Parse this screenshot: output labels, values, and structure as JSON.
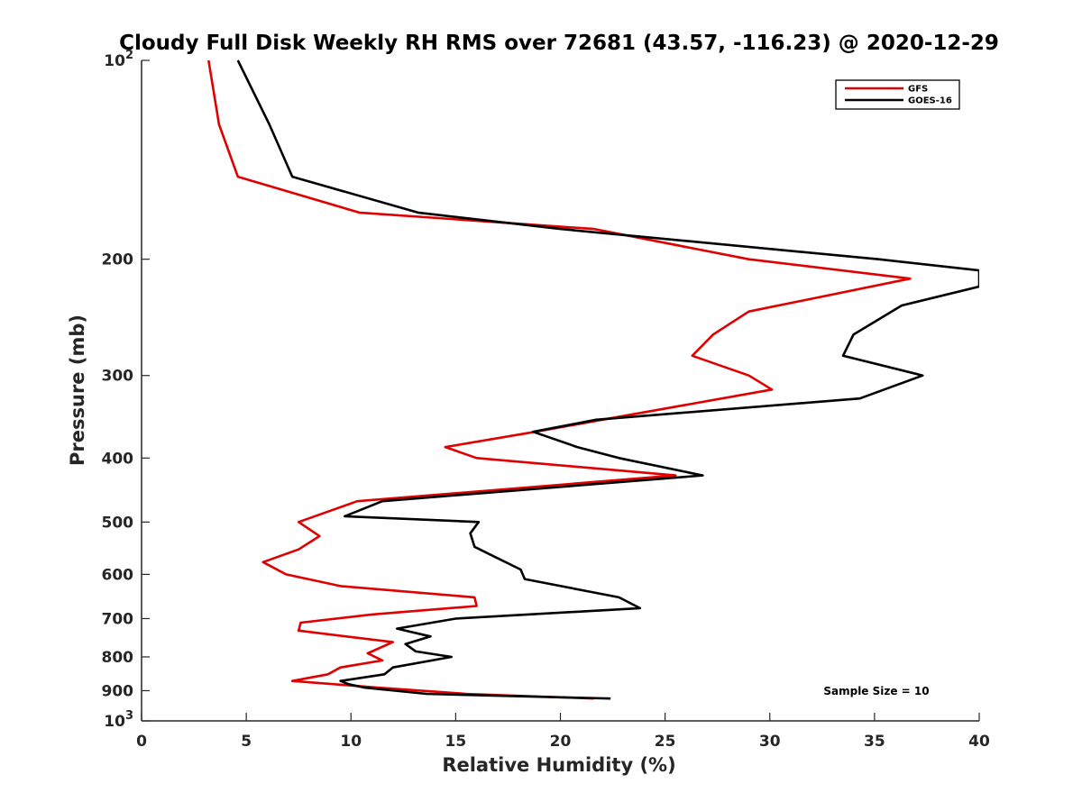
{
  "chart_data": {
    "type": "line",
    "title": "Cloudy Full Disk Weekly RH RMS over 72681 (43.57, -116.23) @ 2020-12-29",
    "xlabel": "Relative Humidity (%)",
    "ylabel": "Pressure (mb)",
    "xlim": [
      0,
      40
    ],
    "ylim": [
      100,
      1000
    ],
    "y_scale": "log",
    "y_reversed": true,
    "x_ticks": [
      "0",
      "5",
      "10",
      "15",
      "20",
      "25",
      "30",
      "35",
      "40"
    ],
    "y_ticks": [
      {
        "value": 100,
        "base": "10",
        "exp": "2"
      },
      {
        "value": 200,
        "label": "200"
      },
      {
        "value": 300,
        "label": "300"
      },
      {
        "value": 400,
        "label": "400"
      },
      {
        "value": 500,
        "label": "500"
      },
      {
        "value": 600,
        "label": "600"
      },
      {
        "value": 700,
        "label": "700"
      },
      {
        "value": 800,
        "label": "800"
      },
      {
        "value": 900,
        "label": "900"
      },
      {
        "value": 1000,
        "base": "10",
        "exp": "3"
      }
    ],
    "legend_position": "top-right",
    "grid": false,
    "series": [
      {
        "name": "GFS",
        "color": "#e00000",
        "points": [
          [
            3.2,
            100
          ],
          [
            3.7,
            125
          ],
          [
            4.6,
            150
          ],
          [
            10.4,
            170
          ],
          [
            21.6,
            180
          ],
          [
            29.0,
            200
          ],
          [
            36.7,
            214
          ],
          [
            29.0,
            240
          ],
          [
            27.3,
            260
          ],
          [
            26.3,
            280
          ],
          [
            29.0,
            300
          ],
          [
            30.1,
            315
          ],
          [
            22.0,
            350
          ],
          [
            18.8,
            365
          ],
          [
            14.5,
            385
          ],
          [
            16.0,
            400
          ],
          [
            25.5,
            425
          ],
          [
            10.3,
            465
          ],
          [
            7.5,
            500
          ],
          [
            8.5,
            525
          ],
          [
            7.5,
            550
          ],
          [
            5.8,
            575
          ],
          [
            6.9,
            600
          ],
          [
            9.5,
            625
          ],
          [
            15.9,
            650
          ],
          [
            16.0,
            670
          ],
          [
            11.0,
            690
          ],
          [
            7.6,
            710
          ],
          [
            7.5,
            730
          ],
          [
            12.0,
            760
          ],
          [
            10.8,
            790
          ],
          [
            11.5,
            810
          ],
          [
            9.5,
            830
          ],
          [
            8.9,
            850
          ],
          [
            7.2,
            870
          ],
          [
            11.2,
            890
          ],
          [
            15.5,
            910
          ],
          [
            21.6,
            925
          ]
        ]
      },
      {
        "name": "GOES-16",
        "color": "#000000",
        "points": [
          [
            4.6,
            100
          ],
          [
            6.1,
            125
          ],
          [
            7.2,
            150
          ],
          [
            13.2,
            170
          ],
          [
            20.0,
            180
          ],
          [
            35.2,
            200
          ],
          [
            40.0,
            208
          ],
          [
            40.0,
            220
          ],
          [
            36.3,
            235
          ],
          [
            34.0,
            260
          ],
          [
            33.5,
            280
          ],
          [
            37.3,
            300
          ],
          [
            34.3,
            325
          ],
          [
            21.7,
            350
          ],
          [
            18.7,
            365
          ],
          [
            20.8,
            385
          ],
          [
            22.8,
            400
          ],
          [
            26.8,
            425
          ],
          [
            11.5,
            465
          ],
          [
            9.7,
            490
          ],
          [
            16.1,
            500
          ],
          [
            15.7,
            520
          ],
          [
            15.9,
            545
          ],
          [
            16.9,
            565
          ],
          [
            18.1,
            590
          ],
          [
            18.3,
            610
          ],
          [
            22.8,
            650
          ],
          [
            23.8,
            675
          ],
          [
            15.0,
            700
          ],
          [
            12.2,
            725
          ],
          [
            13.8,
            745
          ],
          [
            12.6,
            765
          ],
          [
            13.1,
            785
          ],
          [
            14.8,
            800
          ],
          [
            12.0,
            830
          ],
          [
            11.6,
            850
          ],
          [
            9.5,
            870
          ],
          [
            9.9,
            880
          ],
          [
            10.6,
            890
          ],
          [
            13.6,
            910
          ],
          [
            22.4,
            925
          ]
        ]
      }
    ],
    "annotation": "Sample Size = 10"
  }
}
